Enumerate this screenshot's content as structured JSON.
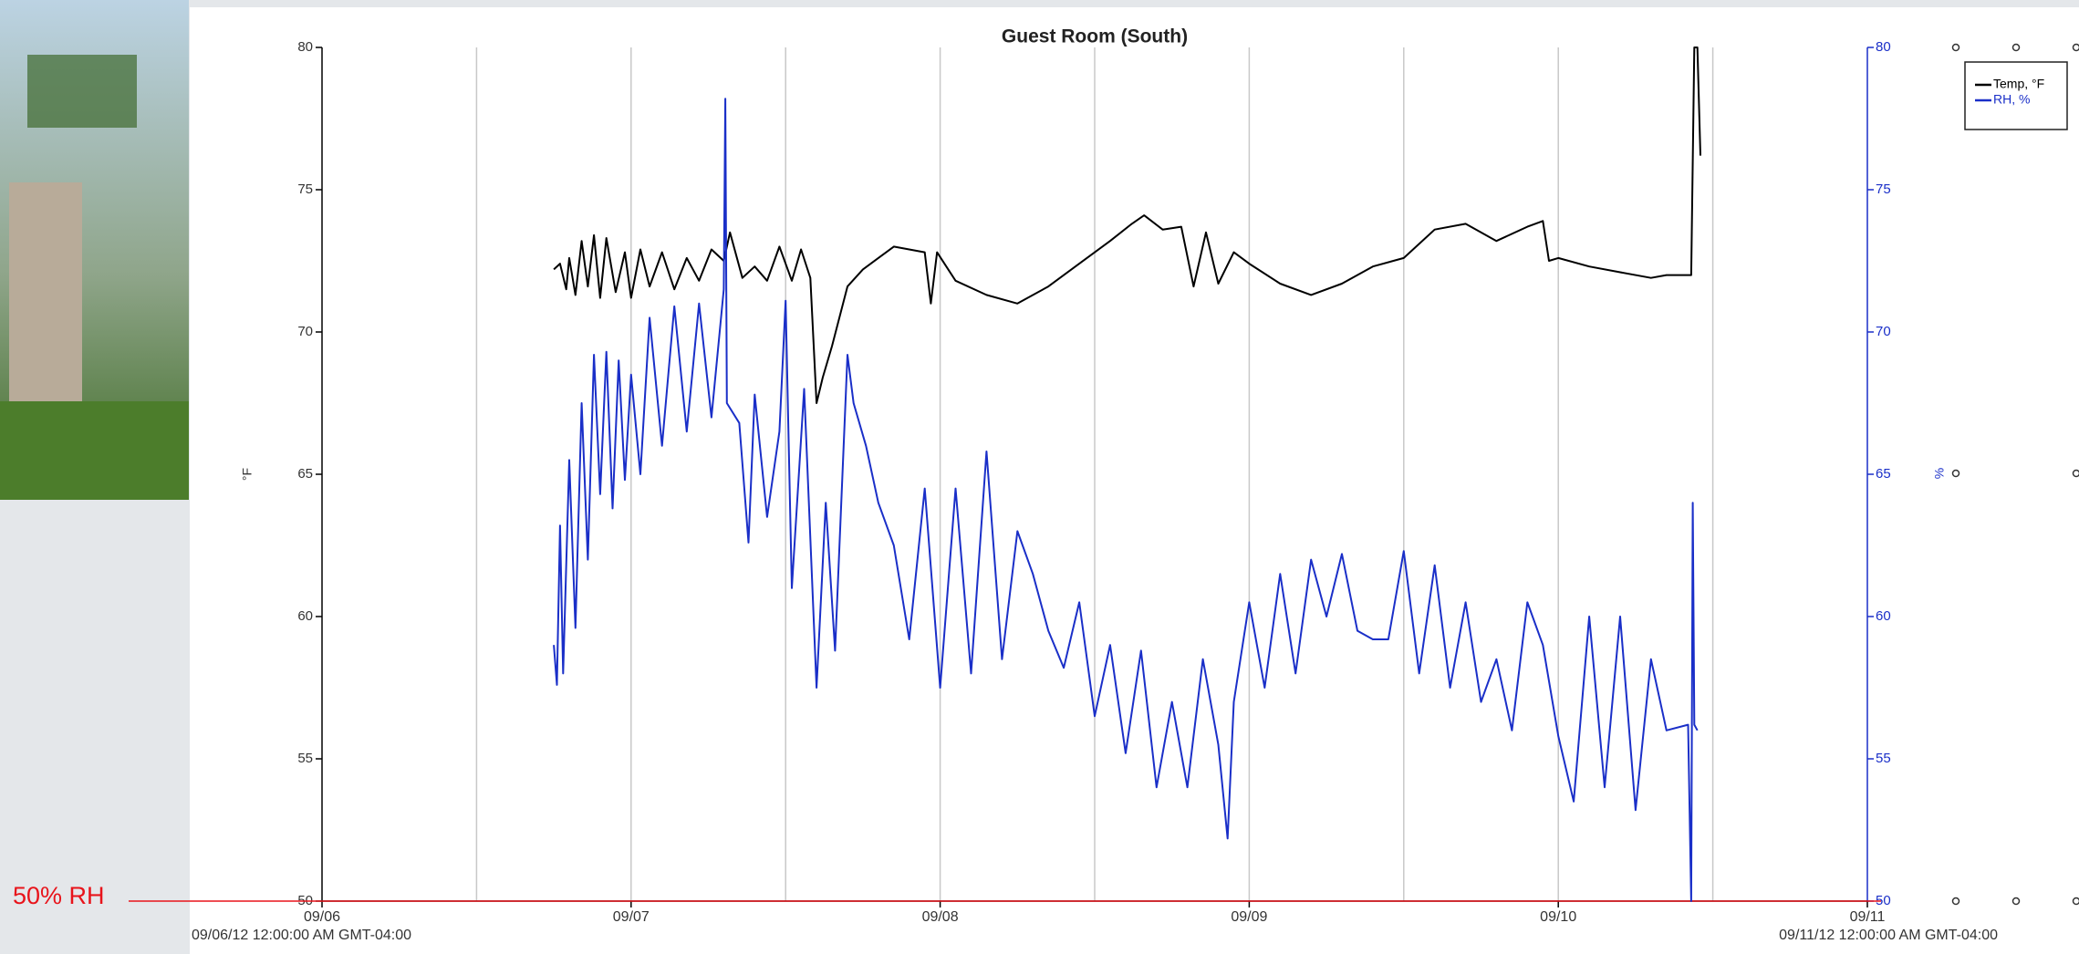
{
  "chart_data": {
    "type": "line",
    "title": "Guest Room (South)",
    "ylabel": "°F",
    "y2label": "%",
    "x_start_label": "09/06/12 12:00:00 AM GMT-04:00",
    "x_end_label": "09/11/12 12:00:00 AM GMT-04:00",
    "xlim": [
      0,
      5
    ],
    "xticks": [
      {
        "value": 0,
        "label": "09/06"
      },
      {
        "value": 1,
        "label": "09/07"
      },
      {
        "value": 2,
        "label": "09/08"
      },
      {
        "value": 3,
        "label": "09/09"
      },
      {
        "value": 4,
        "label": "09/10"
      },
      {
        "value": 5,
        "label": "09/11"
      }
    ],
    "xgrid": [
      0.5,
      1,
      1.5,
      2,
      2.5,
      3,
      3.5,
      4,
      4.5
    ],
    "ylim": [
      50,
      80
    ],
    "yticks": [
      50,
      55,
      60,
      65,
      70,
      75,
      80
    ],
    "y2lim": [
      50,
      80
    ],
    "y2ticks": [
      50,
      55,
      60,
      65,
      70,
      75,
      80
    ],
    "y2color": "#1a2fc8",
    "annotation": {
      "text": "50% RH",
      "value": 50,
      "axis": "y2",
      "color": "#e8141b"
    },
    "series": [
      {
        "name": "Temp, °F",
        "color": "#000000",
        "x": [
          0.75,
          0.77,
          0.79,
          0.8,
          0.82,
          0.84,
          0.86,
          0.88,
          0.9,
          0.92,
          0.95,
          0.98,
          1.0,
          1.03,
          1.06,
          1.1,
          1.14,
          1.18,
          1.22,
          1.26,
          1.3,
          1.32,
          1.36,
          1.4,
          1.44,
          1.48,
          1.52,
          1.55,
          1.58,
          1.6,
          1.62,
          1.65,
          1.7,
          1.75,
          1.8,
          1.85,
          1.9,
          1.95,
          1.97,
          1.99,
          2.05,
          2.15,
          2.25,
          2.35,
          2.45,
          2.55,
          2.62,
          2.66,
          2.72,
          2.78,
          2.82,
          2.86,
          2.9,
          2.95,
          3.0,
          3.1,
          3.2,
          3.3,
          3.4,
          3.5,
          3.6,
          3.7,
          3.8,
          3.9,
          3.95,
          3.97,
          4.0,
          4.1,
          4.2,
          4.3,
          4.35,
          4.43,
          4.44,
          4.45,
          4.46
        ],
        "values": [
          72.2,
          72.4,
          71.5,
          72.6,
          71.3,
          73.2,
          71.6,
          73.4,
          71.2,
          73.3,
          71.4,
          72.8,
          71.2,
          72.9,
          71.6,
          72.8,
          71.5,
          72.6,
          71.8,
          72.9,
          72.5,
          73.5,
          71.9,
          72.3,
          71.8,
          73.0,
          71.8,
          72.9,
          71.9,
          67.5,
          68.4,
          69.5,
          71.6,
          72.2,
          72.6,
          73.0,
          72.9,
          72.8,
          71.0,
          72.8,
          71.8,
          71.3,
          71.0,
          71.6,
          72.4,
          73.2,
          73.8,
          74.1,
          73.6,
          73.7,
          71.6,
          73.5,
          71.7,
          72.8,
          72.4,
          71.7,
          71.3,
          71.7,
          72.3,
          72.6,
          73.6,
          73.8,
          73.2,
          73.7,
          73.9,
          72.5,
          72.6,
          72.3,
          72.1,
          71.9,
          72.0,
          72.0,
          80.0,
          80.0,
          76.2
        ]
      },
      {
        "name": "RH, %",
        "color": "#1a2fc8",
        "axis": "y2",
        "x": [
          0.75,
          0.76,
          0.77,
          0.78,
          0.8,
          0.82,
          0.84,
          0.86,
          0.88,
          0.9,
          0.92,
          0.94,
          0.96,
          0.98,
          1.0,
          1.03,
          1.06,
          1.1,
          1.14,
          1.18,
          1.22,
          1.26,
          1.3,
          1.305,
          1.31,
          1.35,
          1.38,
          1.4,
          1.44,
          1.48,
          1.5,
          1.52,
          1.56,
          1.6,
          1.63,
          1.66,
          1.7,
          1.72,
          1.76,
          1.8,
          1.85,
          1.9,
          1.95,
          2.0,
          2.05,
          2.1,
          2.15,
          2.2,
          2.25,
          2.3,
          2.35,
          2.4,
          2.45,
          2.5,
          2.55,
          2.6,
          2.65,
          2.7,
          2.75,
          2.8,
          2.85,
          2.9,
          2.93,
          2.95,
          3.0,
          3.05,
          3.1,
          3.15,
          3.2,
          3.25,
          3.3,
          3.35,
          3.4,
          3.45,
          3.5,
          3.55,
          3.6,
          3.65,
          3.7,
          3.75,
          3.8,
          3.85,
          3.9,
          3.95,
          4.0,
          4.05,
          4.1,
          4.15,
          4.2,
          4.25,
          4.3,
          4.35,
          4.42,
          4.43,
          4.435,
          4.44,
          4.45
        ],
        "values": [
          59.0,
          57.6,
          63.2,
          58.0,
          65.5,
          59.6,
          67.5,
          62.0,
          69.2,
          64.3,
          69.3,
          63.8,
          69.0,
          64.8,
          68.5,
          65.0,
          70.5,
          66.0,
          70.9,
          66.5,
          71.0,
          67.0,
          71.5,
          78.2,
          67.5,
          66.8,
          62.6,
          67.8,
          63.5,
          66.5,
          71.1,
          61.0,
          68.0,
          57.5,
          64.0,
          58.8,
          69.2,
          67.5,
          66.0,
          64.0,
          62.5,
          59.2,
          64.5,
          57.5,
          64.5,
          58.0,
          65.8,
          58.5,
          63.0,
          61.5,
          59.5,
          58.2,
          60.5,
          56.5,
          59.0,
          55.2,
          58.8,
          54.0,
          57.0,
          54.0,
          58.5,
          55.5,
          52.2,
          57.0,
          60.5,
          57.5,
          61.5,
          58.0,
          62.0,
          60.0,
          62.2,
          59.5,
          59.2,
          59.2,
          62.3,
          58.0,
          61.8,
          57.5,
          60.5,
          57.0,
          58.5,
          56.0,
          60.5,
          59.0,
          55.8,
          53.5,
          60.0,
          54.0,
          60.0,
          53.2,
          58.5,
          56.0,
          56.2,
          50.0,
          64.0,
          56.2,
          56.0
        ]
      }
    ]
  }
}
